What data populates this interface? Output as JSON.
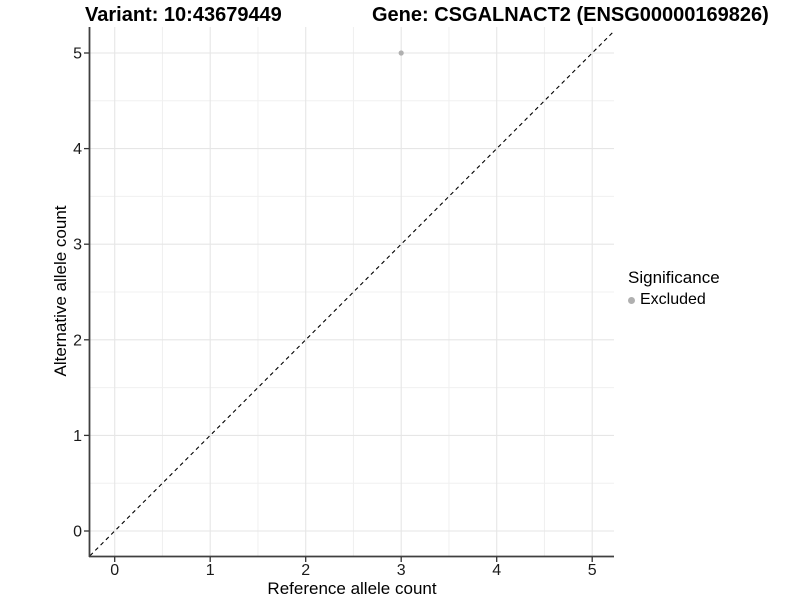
{
  "figure": {
    "title_left": "Variant: 10:43679449",
    "title_right": "Gene: CSGALNACT2 (ENSG00000169826)"
  },
  "chart_data": {
    "type": "scatter",
    "title_left": "Variant: 10:43679449",
    "title_right": "Gene: CSGALNACT2 (ENSG00000169826)",
    "xlabel": "Reference allele count",
    "ylabel": "Alternative allele count",
    "xlim": [
      -0.25,
      5.25
    ],
    "ylim": [
      -0.25,
      5.25
    ],
    "xticks": [
      0,
      1,
      2,
      3,
      4,
      5
    ],
    "yticks": [
      0,
      1,
      2,
      3,
      4,
      5
    ],
    "grid": "major+minor",
    "minor_grid_step": 0.5,
    "identity_line": {
      "style": "dashed",
      "color": "#000000",
      "y_equals_x": true
    },
    "series": [
      {
        "name": "Excluded",
        "marker": "circle",
        "color": "#b0b0b0",
        "points": [
          {
            "x": 3,
            "y": 5
          }
        ]
      }
    ],
    "legend": {
      "title": "Significance",
      "position": "right",
      "items": [
        {
          "label": "Excluded",
          "color": "#b0b0b0"
        }
      ]
    },
    "colors": {
      "major_grid": "#e6e6e6",
      "minor_grid": "#f0f0f0",
      "axis_line": "#404040",
      "tick_mark": "#333333",
      "tick_label": "#1a1a1a",
      "point": "#b0b0b0"
    }
  }
}
